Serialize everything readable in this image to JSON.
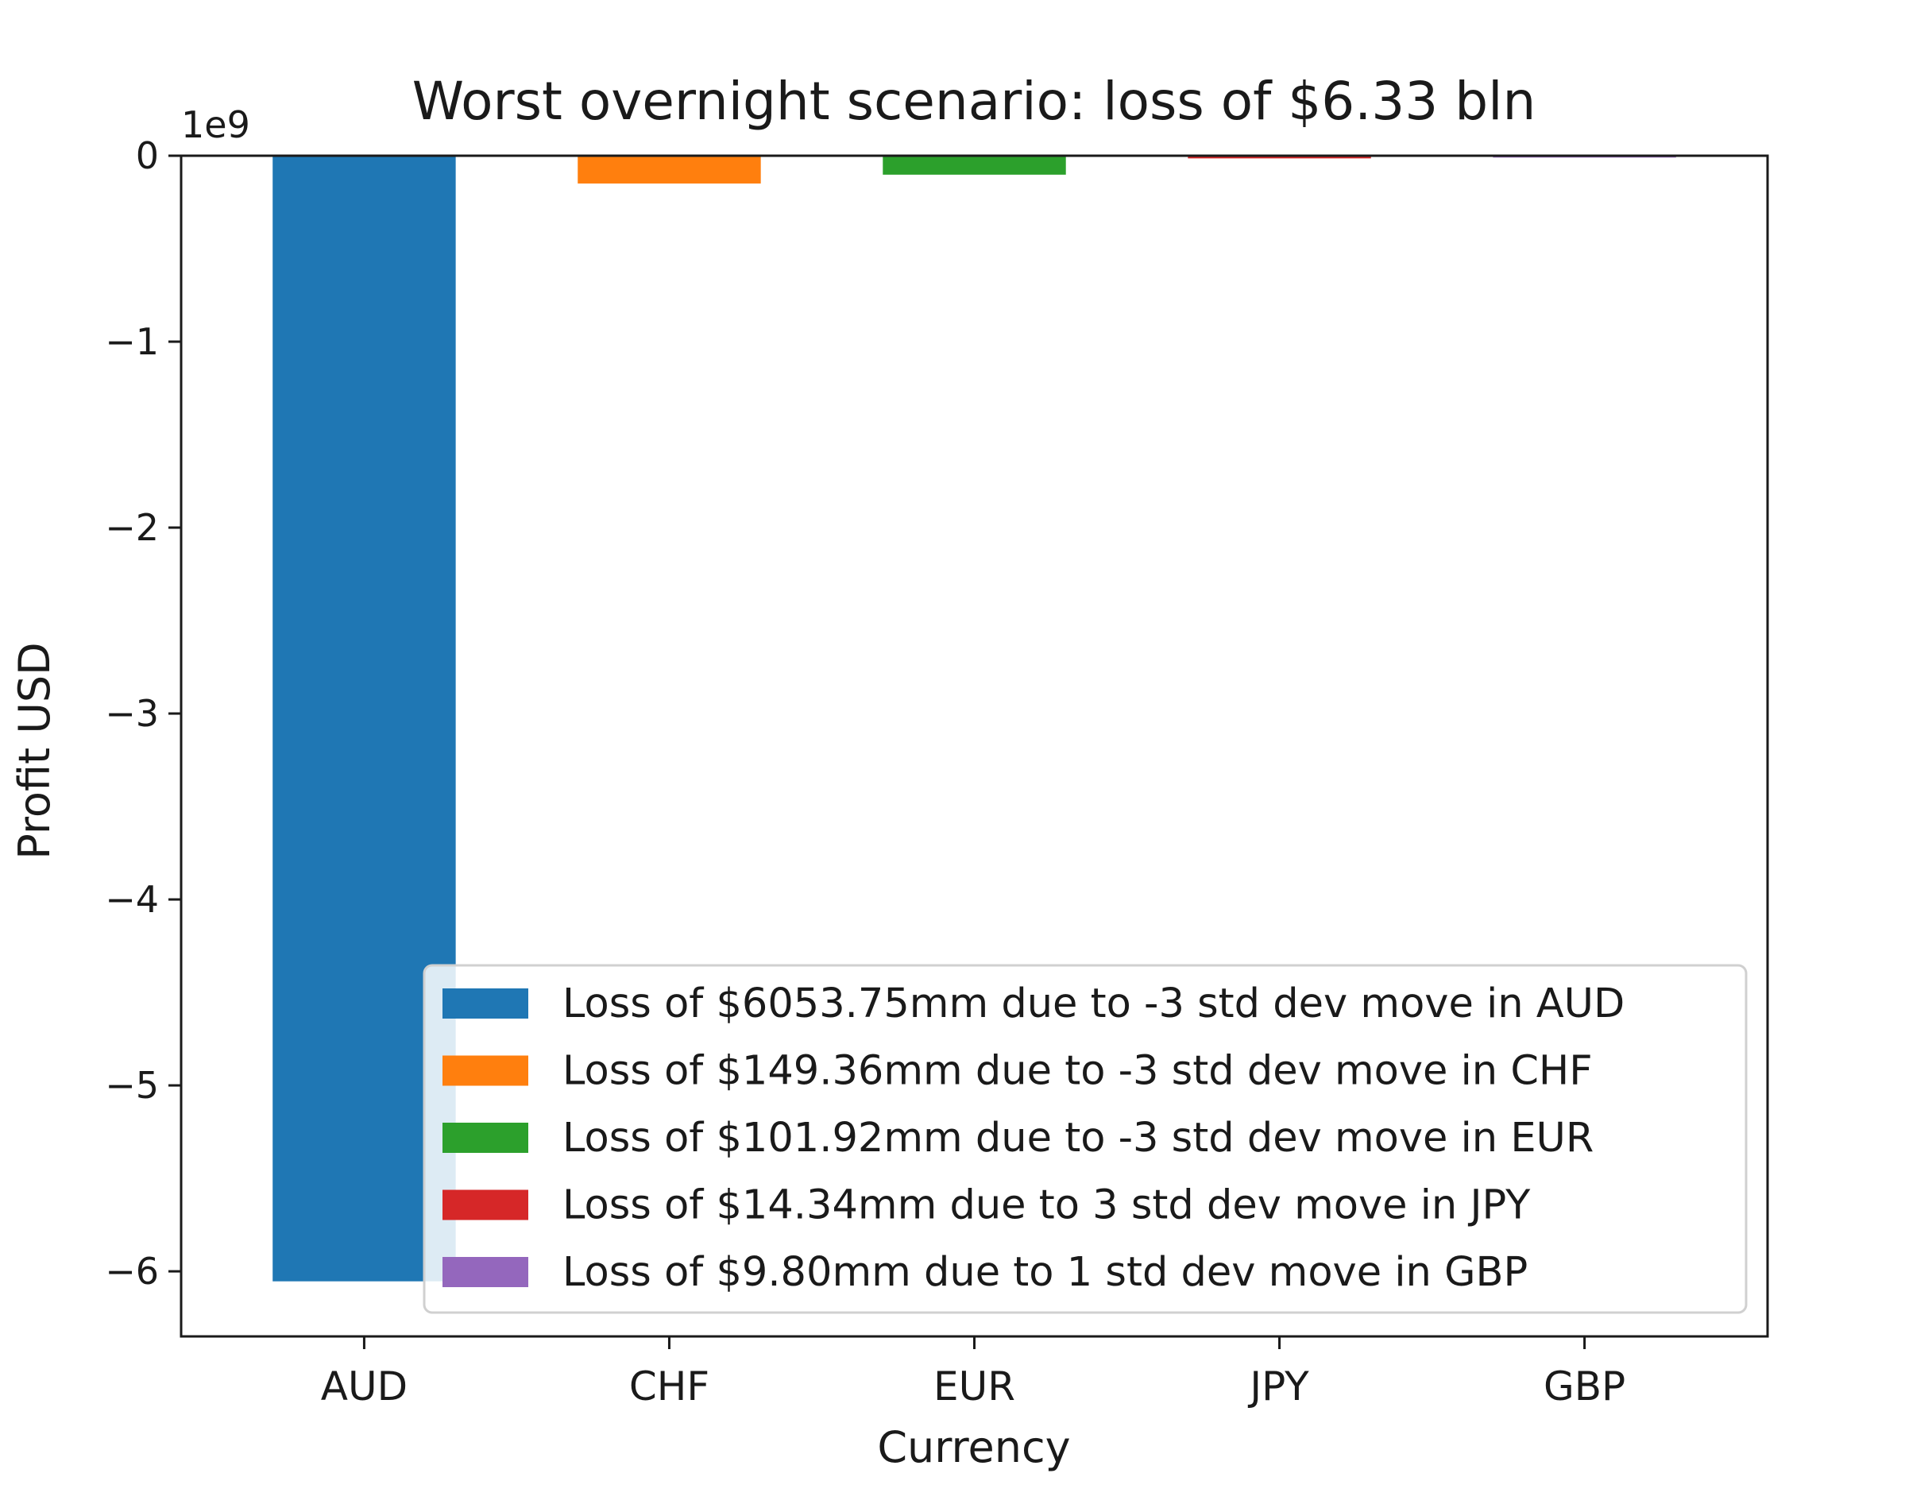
{
  "chart_data": {
    "type": "bar",
    "title": "Worst overnight scenario: loss of $6.33 bln",
    "xlabel": "Currency",
    "ylabel": "Profit USD",
    "y_offset_text": "1e9",
    "y_scale": 1000000000,
    "ylim": [
      -6.35,
      0
    ],
    "yticks": [
      0,
      -1,
      -2,
      -3,
      -4,
      -5,
      -6
    ],
    "ytick_labels": [
      "0",
      "−1",
      "−2",
      "−3",
      "−4",
      "−5",
      "−6"
    ],
    "categories": [
      "AUD",
      "CHF",
      "EUR",
      "JPY",
      "GBP"
    ],
    "values": [
      -6053750000,
      -149360000,
      -101920000,
      -14340000,
      -9800000
    ],
    "colors": [
      "#1f77b4",
      "#ff7f0e",
      "#2ca02c",
      "#d62728",
      "#9467bd"
    ],
    "legend_location": "lower-right",
    "legend": [
      "Loss of $6053.75mm due to -3 std dev move in AUD",
      "Loss of $149.36mm due to -3 std dev move in CHF",
      "Loss of $101.92mm due to -3 std dev move in EUR",
      "Loss of $14.34mm due to 3 std dev move in JPY",
      "Loss of $9.80mm due to 1 std dev move in GBP"
    ]
  }
}
